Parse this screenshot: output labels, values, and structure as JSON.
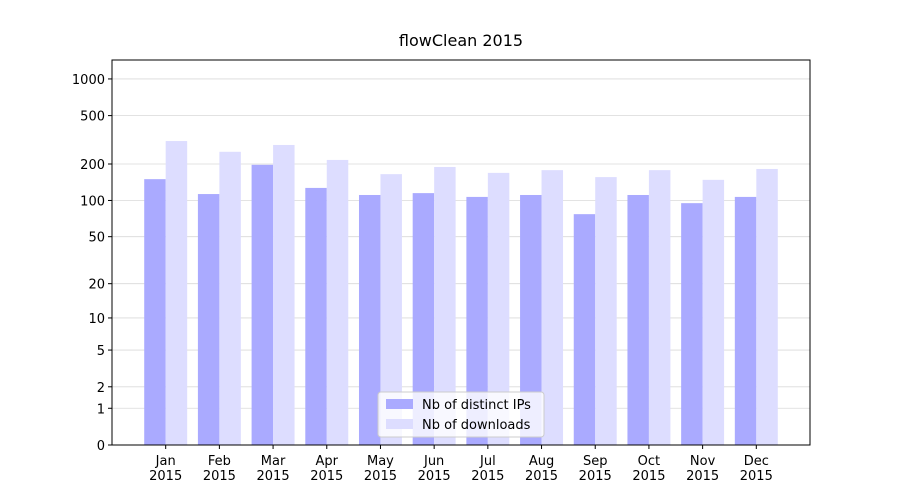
{
  "chart_data": {
    "type": "bar",
    "title": "flowClean 2015",
    "categories": [
      "Jan\n2015",
      "Feb\n2015",
      "Mar\n2015",
      "Apr\n2015",
      "May\n2015",
      "Jun\n2015",
      "Jul\n2015",
      "Aug\n2015",
      "Sep\n2015",
      "Oct\n2015",
      "Nov\n2015",
      "Dec\n2015"
    ],
    "series": [
      {
        "name": "Nb of distinct IPs",
        "color": "#aaaaff",
        "values": [
          150,
          113,
          197,
          127,
          111,
          115,
          107,
          111,
          77,
          111,
          95,
          107
        ]
      },
      {
        "name": "Nb of downloads",
        "color": "#ddddff",
        "values": [
          309,
          252,
          287,
          216,
          165,
          189,
          169,
          178,
          156,
          178,
          148,
          182
        ]
      }
    ],
    "yscale": "log1p",
    "ylim": [
      0,
      1430
    ],
    "yticks": [
      0,
      1,
      2,
      5,
      10,
      20,
      50,
      100,
      200,
      500,
      1000
    ],
    "grid": true,
    "legend": "lower center"
  }
}
